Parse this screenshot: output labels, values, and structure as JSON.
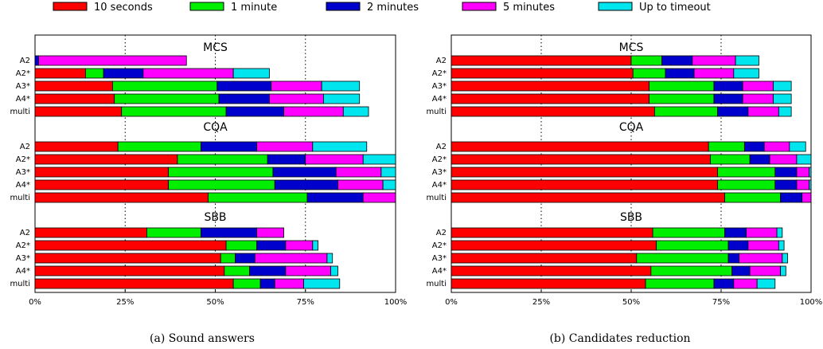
{
  "legend": [
    {
      "label": "10 seconds",
      "color": "#ff0000"
    },
    {
      "label": "1 minute",
      "color": "#00ee00"
    },
    {
      "label": "2 minutes",
      "color": "#0000cc"
    },
    {
      "label": "5 minutes",
      "color": "#ff00ff"
    },
    {
      "label": "Up to timeout",
      "color": "#00e5ee"
    }
  ],
  "chart_data": [
    {
      "type": "bar",
      "orientation": "horizontal",
      "stacked": true,
      "caption": "(a)  Sound answers",
      "xlim": [
        0,
        100
      ],
      "xticks": [
        "0%",
        "25%",
        "50%",
        "75%",
        "100%"
      ],
      "reference_lines": [
        25,
        50,
        75
      ],
      "series_names": [
        "10 seconds",
        "1 minute",
        "2 minutes",
        "5 minutes",
        "Up to timeout"
      ],
      "groups": [
        {
          "name": "MCS",
          "categories": [
            "A2",
            "A2*",
            "A3*",
            "A4*",
            "multi"
          ],
          "values": [
            [
              0,
              0,
              1,
              41,
              0
            ],
            [
              14,
              5,
              11,
              25,
              10
            ],
            [
              21.5,
              29,
              15,
              14,
              10.5
            ],
            [
              22,
              29,
              14,
              15,
              10
            ],
            [
              24,
              29,
              16,
              16.5,
              7
            ]
          ]
        },
        {
          "name": "CQA",
          "categories": [
            "A2",
            "A2*",
            "A3*",
            "A4*",
            "multi"
          ],
          "values": [
            [
              23,
              23,
              15.5,
              15.5,
              15
            ],
            [
              39.5,
              25,
              10.5,
              16,
              9
            ],
            [
              37,
              29,
              17.5,
              12.5,
              4
            ],
            [
              37,
              29.5,
              17.5,
              12.5,
              3.5
            ],
            [
              48,
              27.5,
              15.5,
              9,
              0
            ]
          ]
        },
        {
          "name": "SBB",
          "categories": [
            "A2",
            "A2*",
            "A3*",
            "A4*",
            "multi"
          ],
          "values": [
            [
              31,
              15,
              15.5,
              7.5,
              0
            ],
            [
              53,
              8.5,
              8,
              7.5,
              1.5
            ],
            [
              51.5,
              4,
              5.5,
              20,
              1.5
            ],
            [
              52.5,
              7,
              10,
              12.5,
              2
            ],
            [
              55,
              7.5,
              4,
              8,
              10
            ]
          ]
        }
      ]
    },
    {
      "type": "bar",
      "orientation": "horizontal",
      "stacked": true,
      "caption": "(b)  Candidates reduction",
      "xlim": [
        0,
        100
      ],
      "xticks": [
        "0%",
        "25%",
        "50%",
        "75%",
        "100%"
      ],
      "reference_lines": [
        25,
        50,
        75
      ],
      "series_names": [
        "10 seconds",
        "1 minute",
        "2 minutes",
        "5 minutes",
        "Up to timeout"
      ],
      "groups": [
        {
          "name": "MCS",
          "categories": [
            "A2",
            "A2*",
            "A3*",
            "A4*",
            "multi"
          ],
          "values": [
            [
              50,
              8.5,
              8.5,
              12,
              6.5
            ],
            [
              50.5,
              9,
              8,
              11,
              7
            ],
            [
              55,
              18,
              8,
              8.5,
              5
            ],
            [
              55,
              18,
              8,
              8.5,
              5
            ],
            [
              56.5,
              17.5,
              8.5,
              8.5,
              3.5
            ]
          ]
        },
        {
          "name": "CQA",
          "categories": [
            "A2",
            "A2*",
            "A3*",
            "A4*",
            "multi"
          ],
          "values": [
            [
              71.5,
              10,
              5.5,
              7,
              4.5
            ],
            [
              72,
              11,
              5.5,
              7.5,
              4
            ],
            [
              74,
              16,
              6,
              3.5,
              0.5
            ],
            [
              74,
              16,
              6,
              3.5,
              0.5
            ],
            [
              76,
              15.5,
              6,
              2.5,
              0
            ]
          ]
        },
        {
          "name": "SBB",
          "categories": [
            "A2",
            "A2*",
            "A3*",
            "A4*",
            "multi"
          ],
          "values": [
            [
              56,
              20,
              6,
              8.5,
              1.5
            ],
            [
              57,
              20,
              5.5,
              8.5,
              1.5
            ],
            [
              51.5,
              25.5,
              3,
              12,
              1.5
            ],
            [
              55.5,
              22.5,
              5,
              8.5,
              1.5
            ],
            [
              54,
              19,
              5.5,
              6.5,
              5
            ]
          ]
        }
      ]
    }
  ]
}
